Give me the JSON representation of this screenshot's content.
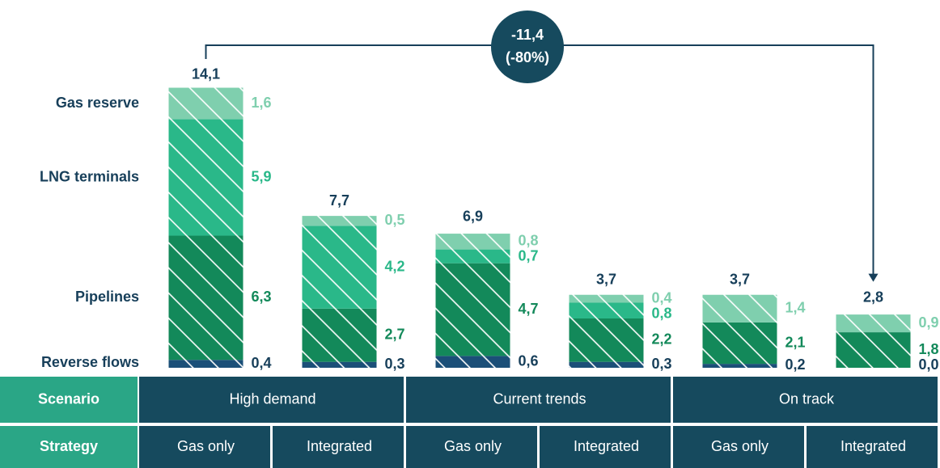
{
  "chart_data": {
    "type": "stacked_bar",
    "ylim": [
      0,
      15
    ],
    "annotation": {
      "lines": [
        "-11,4",
        "(-80%)"
      ]
    },
    "series": [
      {
        "name": "Reverse flows",
        "color": "#1b4f78",
        "label_color": "#173f5a",
        "values": [
          0.4,
          0.3,
          0.6,
          0.3,
          0.2,
          0.0
        ],
        "value_labels": [
          "0,4",
          "0,3",
          "0,6",
          "0,3",
          "0,2",
          "0,0"
        ]
      },
      {
        "name": "Pipelines",
        "color": "#13895a",
        "label_color": "#13895a",
        "values": [
          6.3,
          2.7,
          4.7,
          2.2,
          2.1,
          1.8
        ],
        "value_labels": [
          "6,3",
          "2,7",
          "4,7",
          "2,2",
          "2,1",
          "1,8"
        ]
      },
      {
        "name": "LNG terminals",
        "color": "#2ab889",
        "label_color": "#2ab889",
        "values": [
          5.9,
          4.2,
          0.7,
          0.8,
          null,
          null
        ],
        "value_labels": [
          "5,9",
          "4,2",
          "0,7",
          "0,8",
          null,
          null
        ]
      },
      {
        "name": "Gas reserve",
        "color": "#7fcfae",
        "label_color": "#7fcfae",
        "values": [
          1.6,
          0.5,
          0.8,
          0.4,
          1.4,
          0.9
        ],
        "value_labels": [
          "1,6",
          "0,5",
          "0,8",
          "0,4",
          "1,4",
          "0,9"
        ]
      }
    ],
    "totals": {
      "values": [
        14.1,
        7.7,
        6.9,
        3.7,
        3.7,
        2.8
      ],
      "value_labels": [
        "14,1",
        "7,7",
        "6,9",
        "3,7",
        "3,7",
        "2,8"
      ]
    },
    "table": {
      "scenario_header": "Scenario",
      "strategy_header": "Strategy",
      "scenarios": [
        "High demand",
        "Current trends",
        "On track"
      ],
      "strategies": [
        "Gas only",
        "Integrated",
        "Gas only",
        "Integrated",
        "Gas only",
        "Integrated"
      ]
    }
  }
}
